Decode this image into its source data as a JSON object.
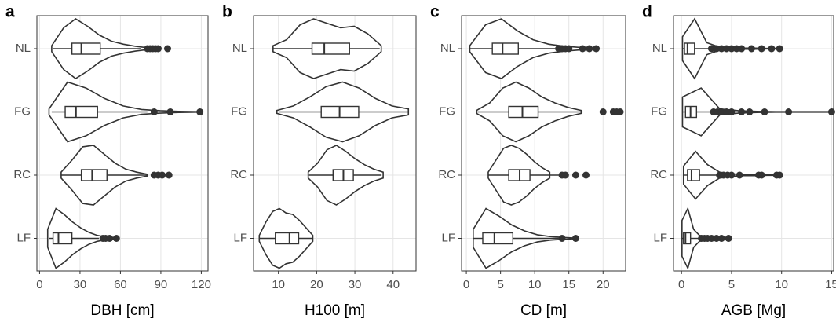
{
  "chart_data": [
    {
      "type": "violin",
      "panel_label": "a",
      "xlabel": "DBH [cm]",
      "categories": [
        "NL",
        "FG",
        "RC",
        "LF"
      ],
      "xlim": [
        -2,
        125
      ],
      "xticks": [
        0,
        30,
        60,
        90,
        120
      ],
      "grid": true,
      "groups": [
        {
          "whisker": [
            10,
            75
          ],
          "box": [
            24,
            31,
            45
          ],
          "outliers": [
            80,
            82,
            84,
            86,
            88,
            95
          ],
          "violin_range": [
            9,
            80
          ],
          "density": [
            0.1,
            0.7,
            1,
            0.75,
            0.45,
            0.25,
            0.15,
            0.08,
            0.03
          ]
        },
        {
          "whisker": [
            9,
            80
          ],
          "box": [
            19,
            27,
            43
          ],
          "outliers": [
            85,
            97,
            119
          ],
          "violin_range": [
            7,
            117
          ],
          "density": [
            0.1,
            1,
            0.8,
            0.45,
            0.2,
            0.08,
            0.04,
            0.02,
            0.01
          ]
        },
        {
          "whisker": [
            16,
            80
          ],
          "box": [
            31,
            39,
            50
          ],
          "outliers": [
            85,
            88,
            91,
            96
          ],
          "violin_range": [
            16,
            80
          ],
          "density": [
            0.1,
            0.5,
            0.95,
            1,
            0.7,
            0.4,
            0.2,
            0.1,
            0.03
          ]
        },
        {
          "whisker": [
            7,
            44
          ],
          "box": [
            10,
            14,
            24
          ],
          "outliers": [
            47,
            49,
            52,
            57
          ],
          "violin_range": [
            6,
            55
          ],
          "density": [
            0.3,
            1,
            0.8,
            0.55,
            0.35,
            0.2,
            0.1,
            0.05,
            0.02
          ]
        }
      ]
    },
    {
      "type": "violin",
      "panel_label": "b",
      "xlabel": "H100 [m]",
      "categories": [
        "NL",
        "FG",
        "RC",
        "LF"
      ],
      "xlim": [
        3.5,
        46
      ],
      "xticks": [
        10,
        20,
        30,
        40
      ],
      "grid": true,
      "groups": [
        {
          "whisker": [
            8.6,
            36.5
          ],
          "box": [
            18.8,
            22,
            28.6
          ],
          "outliers": [],
          "violin_range": [
            8.6,
            36.9
          ],
          "density": [
            0.1,
            0.3,
            0.8,
            1,
            0.85,
            0.7,
            0.75,
            0.5,
            0.1
          ]
        },
        {
          "whisker": [
            10,
            44
          ],
          "box": [
            21.2,
            26,
            31
          ],
          "outliers": [],
          "violin_range": [
            9.6,
            44
          ],
          "density": [
            0.05,
            0.2,
            0.5,
            0.85,
            1,
            0.8,
            0.45,
            0.2,
            0.1
          ]
        },
        {
          "whisker": [
            18,
            37
          ],
          "box": [
            24.3,
            27,
            29.6
          ],
          "outliers": [],
          "violin_range": [
            17.8,
            37.4
          ],
          "density": [
            0.1,
            0.4,
            0.85,
            1,
            0.8,
            0.55,
            0.35,
            0.2,
            0.1
          ]
        },
        {
          "whisker": [
            5,
            19
          ],
          "box": [
            9.2,
            12.9,
            15.3
          ],
          "outliers": [],
          "violin_range": [
            5,
            19
          ],
          "density": [
            0.1,
            0.55,
            0.9,
            1,
            0.85,
            0.8,
            0.6,
            0.35,
            0.1
          ]
        }
      ]
    },
    {
      "type": "violin",
      "panel_label": "c",
      "xlabel": "CD [m]",
      "categories": [
        "NL",
        "FG",
        "RC",
        "LF"
      ],
      "xlim": [
        -0.7,
        23.3
      ],
      "xticks": [
        0,
        5,
        10,
        15,
        20
      ],
      "grid": true,
      "groups": [
        {
          "whisker": [
            0.5,
            13
          ],
          "box": [
            3.8,
            5.3,
            7.6
          ],
          "outliers": [
            13.5,
            14,
            14.5,
            15,
            17,
            18,
            19
          ],
          "violin_range": [
            0.5,
            19
          ],
          "density": [
            0.1,
            0.8,
            1,
            0.6,
            0.3,
            0.15,
            0.08,
            0.04,
            0.02
          ]
        },
        {
          "whisker": [
            1.5,
            17
          ],
          "box": [
            6.2,
            8.2,
            10.5
          ],
          "outliers": [
            20,
            21.5,
            22,
            22.5
          ],
          "violin_range": [
            1.5,
            16.8
          ],
          "density": [
            0.05,
            0.3,
            0.8,
            1,
            0.8,
            0.5,
            0.3,
            0.15,
            0.05
          ]
        },
        {
          "whisker": [
            3.2,
            13.5
          ],
          "box": [
            6.2,
            7.8,
            9.3
          ],
          "outliers": [
            14,
            14.5,
            16,
            17.5
          ],
          "violin_range": [
            3.2,
            12.2
          ],
          "density": [
            0.1,
            0.5,
            0.9,
            1,
            0.9,
            0.7,
            0.45,
            0.25,
            0.1
          ]
        },
        {
          "whisker": [
            1,
            13.5
          ],
          "box": [
            2.4,
            4.1,
            6.8
          ],
          "outliers": [
            14,
            16
          ],
          "violin_range": [
            1,
            16
          ],
          "density": [
            0.3,
            1,
            0.75,
            0.45,
            0.25,
            0.12,
            0.06,
            0.03,
            0.01
          ]
        }
      ]
    },
    {
      "type": "violin",
      "panel_label": "d",
      "xlabel": "AGB [Mg]",
      "categories": [
        "NL",
        "FG",
        "RC",
        "LF"
      ],
      "xlim": [
        -0.8,
        15.2
      ],
      "xticks": [
        0,
        5,
        10,
        15
      ],
      "grid": true,
      "groups": [
        {
          "whisker": [
            0.1,
            2.7
          ],
          "box": [
            0.3,
            0.6,
            1.3
          ],
          "outliers": [
            3,
            3.5,
            4,
            4.5,
            5,
            5.5,
            6,
            7,
            8,
            9,
            9.8
          ],
          "violin_range": [
            0.1,
            9.8
          ],
          "density": [
            0.4,
            1,
            0.2,
            0.06,
            0.03,
            0.02,
            0.02,
            0.01,
            0.01
          ]
        },
        {
          "whisker": [
            0.1,
            3
          ],
          "box": [
            0.4,
            0.9,
            1.5
          ],
          "outliers": [
            3.2,
            3.6,
            4,
            4.5,
            5,
            6,
            6.8,
            8.3,
            10.7,
            15
          ],
          "violin_range": [
            0.1,
            15
          ],
          "density": [
            0.5,
            0.8,
            0.1,
            0.04,
            0.02,
            0.01,
            0.01,
            0.01,
            0.01
          ]
        },
        {
          "whisker": [
            0.2,
            3.6
          ],
          "box": [
            0.6,
            1,
            1.8
          ],
          "outliers": [
            3.8,
            4.2,
            4.6,
            5,
            5.8,
            7.7,
            8,
            9.5,
            9.8
          ],
          "violin_range": [
            0.2,
            9.8
          ],
          "density": [
            0.3,
            0.8,
            0.35,
            0.1,
            0.04,
            0.02,
            0.02,
            0.01,
            0.01
          ]
        },
        {
          "whisker": [
            0.05,
            1.8
          ],
          "box": [
            0.2,
            0.4,
            0.9
          ],
          "outliers": [
            2,
            2.3,
            2.6,
            3,
            3.5,
            4,
            4.7
          ],
          "violin_range": [
            0.05,
            4.7
          ],
          "density": [
            0.6,
            1,
            0.3,
            0.1,
            0.05,
            0.03,
            0.02,
            0.01,
            0.01
          ]
        }
      ]
    }
  ]
}
